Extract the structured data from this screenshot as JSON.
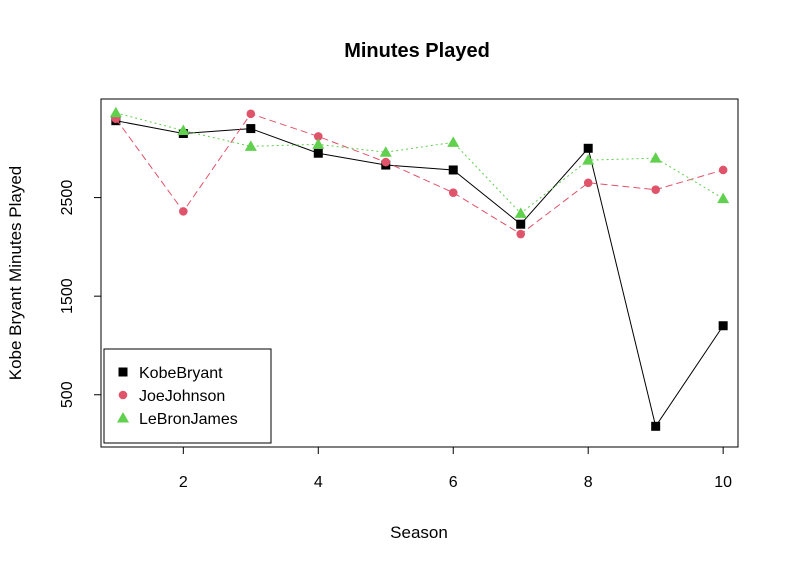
{
  "chart_data": {
    "type": "line",
    "title": "Minutes Played",
    "xlabel": "Season",
    "ylabel": "Kobe Bryant Minutes Played",
    "xlim": [
      0.78,
      10.22
    ],
    "ylim": [
      -30,
      3500
    ],
    "x_ticks": [
      2,
      4,
      6,
      8,
      10
    ],
    "y_ticks": [
      500,
      1500,
      2500
    ],
    "x": [
      1,
      2,
      3,
      4,
      5,
      6,
      7,
      8,
      9,
      10
    ],
    "legend_position": "bottom-left",
    "series": [
      {
        "name": "KobeBryant",
        "color": "#000000",
        "marker": "square",
        "line_style": "solid",
        "values": [
          3280,
          3150,
          3200,
          2950,
          2830,
          2780,
          2230,
          3000,
          180,
          1200
        ]
      },
      {
        "name": "JoeJohnson",
        "color": "#DF536B",
        "marker": "circle",
        "line_style": "dashed",
        "values": [
          3300,
          2360,
          3350,
          3120,
          2860,
          2550,
          2130,
          2650,
          2580,
          2780
        ]
      },
      {
        "name": "LeBronJames",
        "color": "#61D04F",
        "marker": "triangle",
        "line_style": "dotted",
        "values": [
          3360,
          3180,
          3020,
          3040,
          2960,
          3060,
          2340,
          2880,
          2900,
          2490
        ]
      }
    ]
  }
}
